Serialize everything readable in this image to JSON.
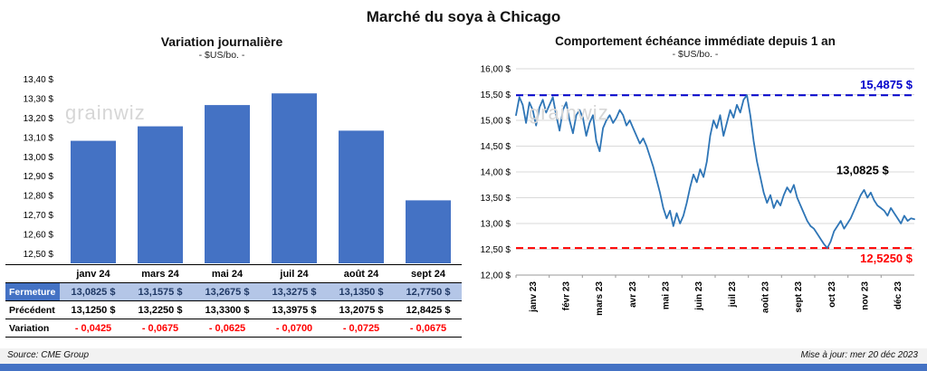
{
  "page": {
    "title": "Marché du soya à Chicago",
    "watermark": "grainwiz",
    "footer": {
      "source": "Source: CME Group",
      "updated": "Mise à jour: mer 20 déc 2023"
    }
  },
  "colors": {
    "bar_blue": "#4472C4",
    "line_blue": "#2E75B6",
    "max_line_blue": "#0000CC",
    "min_line_red": "#FF0000",
    "close_row_bg": "#B4C6E7",
    "close_label_bg": "#4472C4",
    "accent_bar": "#4472C4"
  },
  "chart_data": [
    {
      "type": "bar",
      "title": "Variation journalière",
      "subtitle": "- $US/bo. -",
      "categories": [
        "janv 24",
        "mars 24",
        "mai 24",
        "juil 24",
        "août 24",
        "sept 24"
      ],
      "values": [
        13.0825,
        13.1575,
        13.2675,
        13.3275,
        13.135,
        12.775
      ],
      "ylim": [
        12.5,
        13.4
      ],
      "ytick_step": 0.1,
      "ytick_labels": [
        "13,40 $",
        "13,30 $",
        "13,20 $",
        "13,10 $",
        "13,00 $",
        "12,90 $",
        "12,80 $",
        "12,70 $",
        "12,60 $",
        "12,50 $"
      ],
      "bar_color": "#4472C4",
      "grid": false
    },
    {
      "type": "line",
      "title": "Comportement échéance immédiate depuis 1 an",
      "subtitle": "- $US/bo. -",
      "x_labels": [
        "janv 23",
        "févr 23",
        "mars 23",
        "avr 23",
        "mai 23",
        "juin 23",
        "juil 23",
        "août 23",
        "sept 23",
        "oct 23",
        "nov 23",
        "déc 23"
      ],
      "ylim": [
        12.0,
        16.0
      ],
      "ytick_step": 0.5,
      "ytick_labels": [
        "16,00 $",
        "15,50 $",
        "15,00 $",
        "14,50 $",
        "14,00 $",
        "13,50 $",
        "13,00 $",
        "12,50 $",
        "12,00 $"
      ],
      "line_color": "#2E75B6",
      "grid": true,
      "values": [
        15.1,
        15.45,
        15.3,
        14.95,
        15.35,
        15.2,
        14.9,
        15.25,
        15.4,
        15.15,
        15.3,
        15.45,
        15.1,
        14.8,
        15.2,
        15.35,
        15.0,
        14.75,
        15.1,
        15.2,
        15.05,
        14.7,
        14.95,
        15.1,
        14.6,
        14.4,
        14.85,
        15.0,
        15.1,
        14.95,
        15.05,
        15.2,
        15.1,
        14.9,
        15.0,
        14.85,
        14.7,
        14.55,
        14.65,
        14.5,
        14.3,
        14.1,
        13.85,
        13.6,
        13.3,
        13.1,
        13.25,
        12.95,
        13.2,
        13.0,
        13.15,
        13.4,
        13.7,
        13.95,
        13.8,
        14.05,
        13.9,
        14.2,
        14.7,
        15.0,
        14.85,
        15.1,
        14.7,
        14.95,
        15.2,
        15.05,
        15.3,
        15.15,
        15.4,
        15.4875,
        15.1,
        14.6,
        14.2,
        13.9,
        13.6,
        13.4,
        13.55,
        13.3,
        13.45,
        13.35,
        13.55,
        13.7,
        13.6,
        13.75,
        13.5,
        13.35,
        13.2,
        13.05,
        12.95,
        12.9,
        12.8,
        12.7,
        12.6,
        12.525,
        12.65,
        12.85,
        12.95,
        13.05,
        12.9,
        13.0,
        13.1,
        13.25,
        13.4,
        13.55,
        13.65,
        13.5,
        13.6,
        13.45,
        13.35,
        13.3,
        13.25,
        13.15,
        13.3,
        13.2,
        13.1,
        13.0,
        13.15,
        13.05,
        13.1,
        13.0825
      ],
      "annotations": [
        {
          "name": "max-line",
          "label": "15,4875 $",
          "value": 15.4875,
          "color": "#0000CC",
          "style": "dashed"
        },
        {
          "name": "min-line",
          "label": "12,5250 $",
          "value": 12.525,
          "color": "#FF0000",
          "style": "dashed"
        },
        {
          "name": "last-close",
          "label": "13,0825 $",
          "value": 13.0825,
          "color": "#000000",
          "style": "point-label"
        }
      ]
    }
  ],
  "table": {
    "columns": [
      "janv 24",
      "mars 24",
      "mai 24",
      "juil 24",
      "août 24",
      "sept 24"
    ],
    "rows": [
      {
        "label": "Fermeture",
        "values": [
          "13,0825 $",
          "13,1575 $",
          "13,2675 $",
          "13,3275 $",
          "13,1350 $",
          "12,7750 $"
        ]
      },
      {
        "label": "Précédent",
        "values": [
          "13,1250 $",
          "13,2250 $",
          "13,3300 $",
          "13,3975 $",
          "13,2075 $",
          "12,8425 $"
        ]
      },
      {
        "label": "Variation",
        "values": [
          "- 0,0425",
          "- 0,0675",
          "- 0,0625",
          "- 0,0700",
          "- 0,0725",
          "- 0,0675"
        ]
      }
    ]
  }
}
